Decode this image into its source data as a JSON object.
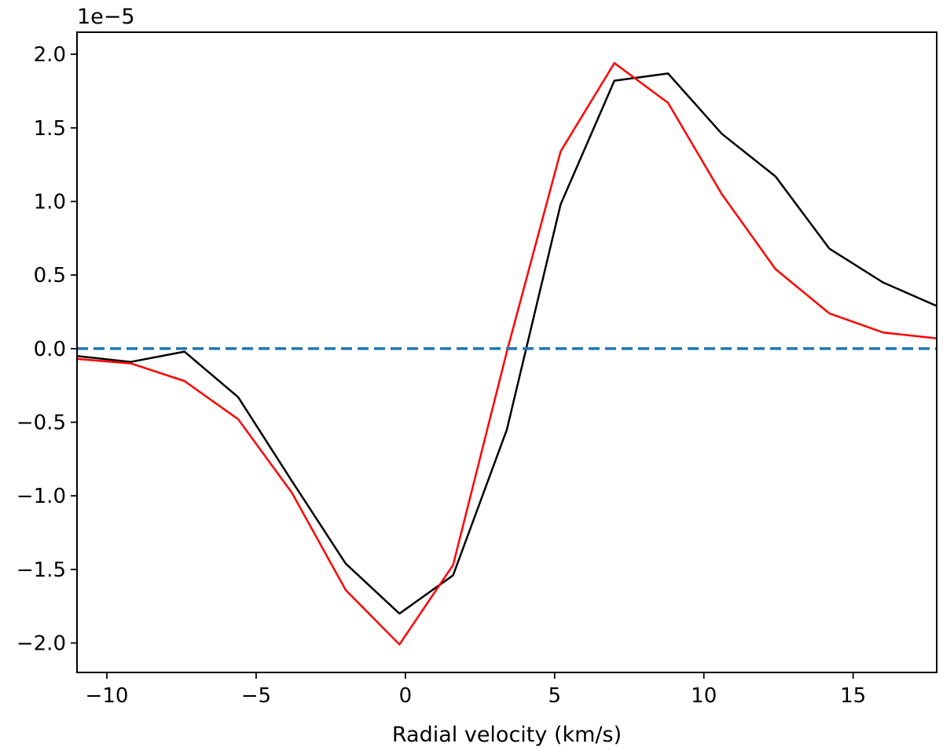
{
  "chart_data": {
    "type": "line",
    "title": "",
    "xlabel": "Radial velocity (km/s)",
    "ylabel": "",
    "offset_text": "1e−5",
    "xlim": [
      -11,
      17.8
    ],
    "ylim": [
      -2.2,
      2.15
    ],
    "scale": 1e-05,
    "grid": false,
    "xticks": [
      -10,
      -5,
      0,
      5,
      10,
      15
    ],
    "xtick_labels": [
      "−10",
      "−5",
      "0",
      "5",
      "10",
      "15"
    ],
    "yticks": [
      -2.0,
      -1.5,
      -1.0,
      -0.5,
      0.0,
      0.5,
      1.0,
      1.5,
      2.0
    ],
    "ytick_labels": [
      "−2.0",
      "−1.5",
      "−1.0",
      "−0.5",
      "0.0",
      "0.5",
      "1.0",
      "1.5",
      "2.0"
    ],
    "series": [
      {
        "name": "black-curve",
        "color": "#000000",
        "style": "solid",
        "x": [
          -11.0,
          -9.2,
          -7.4,
          -5.6,
          -3.8,
          -2.0,
          -0.2,
          1.6,
          3.4,
          5.2,
          7.0,
          8.8,
          10.6,
          12.4,
          14.2,
          16.0,
          17.8
        ],
        "y": [
          -0.05,
          -0.09,
          -0.02,
          -0.33,
          -0.9,
          -1.46,
          -1.8,
          -1.54,
          -0.55,
          0.98,
          1.82,
          1.87,
          1.46,
          1.17,
          0.68,
          0.45,
          0.29
        ]
      },
      {
        "name": "red-curve",
        "color": "#ff0000",
        "style": "solid",
        "x": [
          -11.0,
          -9.2,
          -7.4,
          -5.6,
          -3.8,
          -2.0,
          -0.2,
          1.6,
          3.4,
          5.2,
          7.0,
          8.8,
          10.6,
          12.4,
          14.2,
          16.0,
          17.8
        ],
        "y": [
          -0.07,
          -0.1,
          -0.22,
          -0.48,
          -0.98,
          -1.64,
          -2.01,
          -1.47,
          -0.02,
          1.34,
          1.94,
          1.67,
          1.05,
          0.54,
          0.24,
          0.11,
          0.07
        ]
      },
      {
        "name": "zero-line",
        "color": "#1f77b4",
        "style": "dashed",
        "x": [
          -11.0,
          17.8
        ],
        "y": [
          0.0,
          0.0
        ]
      }
    ]
  }
}
